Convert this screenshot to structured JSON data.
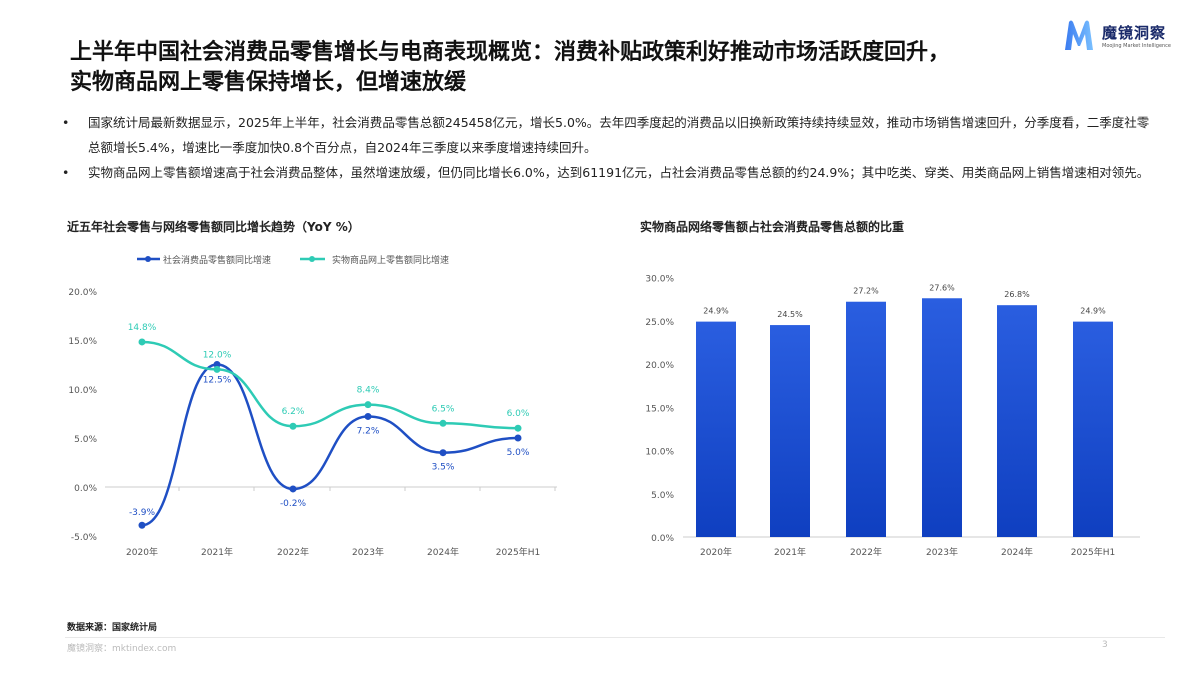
{
  "header": {
    "title_line1": "上半年中国社会消费品零售增长与电商表现概览：消费补贴政策利好推动市场活跃度回升，",
    "title_line2": "实物商品网上零售保持增长，但增速放缓"
  },
  "logo": {
    "name_cn": "魔镜洞察",
    "name_en": "Moojing Market Intelligence"
  },
  "bullets": [
    "国家统计局最新数据显示，2025年上半年，社会消费品零售总额245458亿元，增长5.0%。去年四季度起的消费品以旧换新政策持续持续显效，推动市场销售增速回升，分季度看，二季度社零总额增长5.4%，增速比一季度加快0.8个百分点，自2024年三季度以来季度增速持续回升。",
    "实物商品网上零售额增速高于社会消费品整体，虽然增速放缓，但仍同比增长6.0%，达到61191亿元，占社会消费品零售总额的约24.9%；其中吃类、穿类、用类商品网上销售增速相对领先。"
  ],
  "chart_data": [
    {
      "type": "line",
      "title": "近五年社会零售与网络零售额同比增长趋势（YoY %）",
      "categories": [
        "2020年",
        "2021年",
        "2022年",
        "2023年",
        "2024年",
        "2025年H1"
      ],
      "series": [
        {
          "name": "社会消费品零售额同比增速",
          "values": [
            -3.9,
            12.5,
            -0.2,
            7.2,
            3.5,
            5.0
          ],
          "labels": [
            "-3.9%",
            "12.5%",
            "-0.2%",
            "7.2%",
            "3.5%",
            "5.0%"
          ],
          "color": "#1f4fc4"
        },
        {
          "name": "实物商品网上零售额同比增速",
          "values": [
            14.8,
            12.0,
            6.2,
            8.4,
            6.5,
            6.0
          ],
          "labels": [
            "14.8%",
            "12.0%",
            "6.2%",
            "8.4%",
            "6.5%",
            "6.0%"
          ],
          "color": "#2ecbb5"
        }
      ],
      "yticks": [
        "20.0%",
        "15.0%",
        "10.0%",
        "5.0%",
        "0.0%",
        "-5.0%"
      ],
      "ylim": [
        -5,
        20
      ],
      "legend": "top"
    },
    {
      "type": "bar",
      "title": "实物商品网络零售额占社会消费品零售总额的比重",
      "categories": [
        "2020年",
        "2021年",
        "2022年",
        "2023年",
        "2024年",
        "2025年H1"
      ],
      "values": [
        24.9,
        24.5,
        27.2,
        27.6,
        26.8,
        24.9
      ],
      "labels": [
        "24.9%",
        "24.5%",
        "27.2%",
        "27.6%",
        "26.8%",
        "24.9%"
      ],
      "yticks": [
        "30.0%",
        "25.0%",
        "20.0%",
        "15.0%",
        "10.0%",
        "5.0%",
        "0.0%"
      ],
      "ylim": [
        0,
        30
      ],
      "color": "#1f4fd0"
    }
  ],
  "footer": {
    "source": "数据来源：国家统计局",
    "site": "魔镜洞察：mktindex.com",
    "page": "3"
  }
}
